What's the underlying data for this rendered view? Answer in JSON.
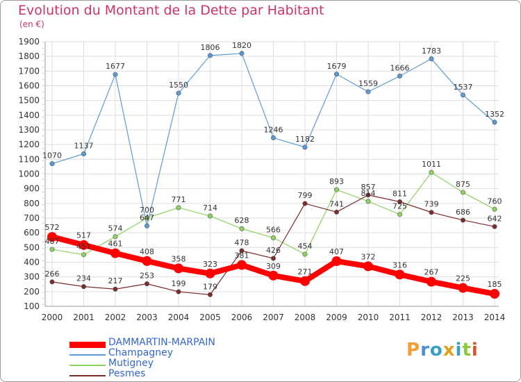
{
  "header": {
    "title": "Evolution du Montant de la Dette par Habitant",
    "subtitle": "(en €)"
  },
  "logo": {
    "text": "Proxiti"
  },
  "colors": {
    "title": "#cc3366",
    "axis_text": "#333333",
    "grid": "#dddddd",
    "legend_text": "#3366cc"
  },
  "chart_data": {
    "type": "line",
    "title": "Evolution du Montant de la Dette par Habitant",
    "ylabel": "(en €)",
    "xlabel": "",
    "ylim": [
      100,
      1900
    ],
    "yticks": [
      100,
      200,
      300,
      400,
      500,
      600,
      700,
      800,
      900,
      1000,
      1100,
      1200,
      1300,
      1400,
      1500,
      1600,
      1700,
      1800,
      1900
    ],
    "grid": true,
    "legend_position": "bottom-left",
    "categories": [
      "2000",
      "2001",
      "2002",
      "2003",
      "2004",
      "2005",
      "2006",
      "2007",
      "2008",
      "2009",
      "2010",
      "2011",
      "2012",
      "2013",
      "2014"
    ],
    "series": [
      {
        "name": "DAMMARTIN-MARPAIN",
        "color": "#ff0000",
        "values": [
          572,
          517,
          461,
          408,
          358,
          323,
          381,
          309,
          271,
          407,
          372,
          316,
          267,
          225,
          185
        ]
      },
      {
        "name": "Champagney",
        "color": "#5b9bd5",
        "values": [
          1070,
          1137,
          1677,
          647,
          1550,
          1806,
          1820,
          1246,
          1182,
          1679,
          1559,
          1666,
          1783,
          1537,
          1352
        ]
      },
      {
        "name": "Mutigney",
        "color": "#8dd35f",
        "values": [
          487,
          451,
          574,
          700,
          771,
          714,
          628,
          566,
          454,
          893,
          814,
          725,
          1011,
          875,
          760
        ]
      },
      {
        "name": "Pesmes",
        "color": "#7b2c2c",
        "values": [
          266,
          234,
          217,
          253,
          199,
          179,
          478,
          426,
          799,
          741,
          857,
          811,
          739,
          686,
          642
        ]
      }
    ]
  }
}
